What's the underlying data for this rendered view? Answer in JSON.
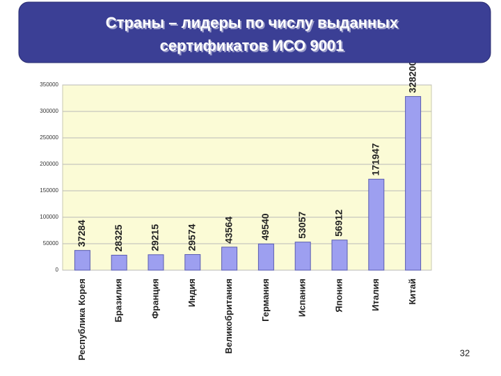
{
  "chart_data": {
    "type": "bar",
    "title_lines": [
      "Страны – лидеры по числу выданных",
      "сертификатов ИСО 9001"
    ],
    "categories": [
      "Республика Корея",
      "Бразилия",
      "Франция",
      "Индия",
      "Великобритания",
      "Германия",
      "Испания",
      "Япония",
      "Италия",
      "Китай"
    ],
    "values": [
      37284,
      28325,
      29215,
      29574,
      43564,
      49540,
      53057,
      56912,
      171947,
      328200
    ],
    "color": "#9d9ff0",
    "ylim": [
      0,
      350000
    ],
    "yticks": [
      0,
      50000,
      100000,
      150000,
      200000,
      250000,
      300000,
      350000
    ],
    "grid": true
  },
  "page_number": "32"
}
